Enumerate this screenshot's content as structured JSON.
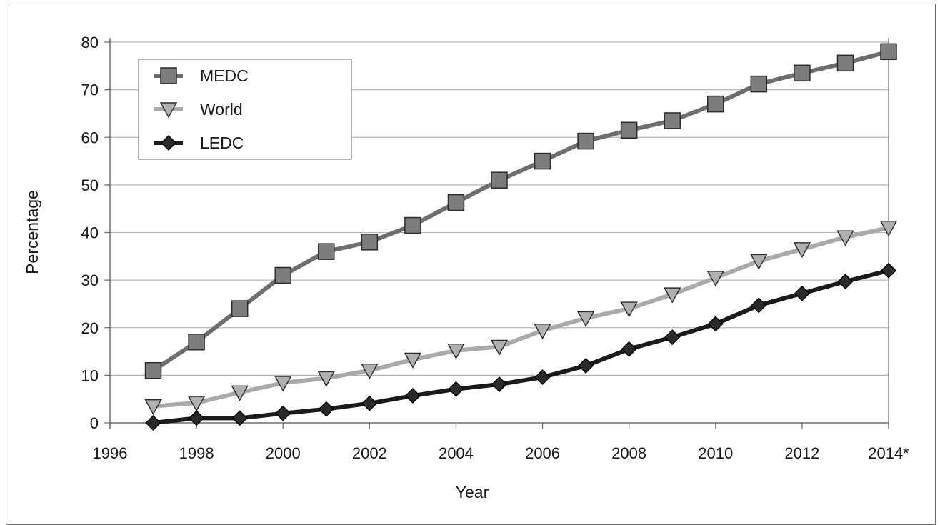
{
  "chart_data": {
    "type": "line",
    "xlabel": "Year",
    "ylabel": "Percentage",
    "ylim": [
      0,
      80
    ],
    "yticks": [
      0,
      10,
      20,
      30,
      40,
      50,
      60,
      70,
      80
    ],
    "xlim": [
      1996,
      2014
    ],
    "xticks": [
      {
        "value": 1996,
        "label": "1996"
      },
      {
        "value": 1998,
        "label": "1998"
      },
      {
        "value": 2000,
        "label": "2000"
      },
      {
        "value": 2002,
        "label": "2002"
      },
      {
        "value": 2004,
        "label": "2004"
      },
      {
        "value": 2006,
        "label": "2006"
      },
      {
        "value": 2008,
        "label": "2008"
      },
      {
        "value": 2010,
        "label": "2010"
      },
      {
        "value": 2012,
        "label": "2012"
      },
      {
        "value": 2014,
        "label": "2014*"
      }
    ],
    "grid": "horizontal",
    "legend_position": "top-left",
    "x": [
      1997,
      1998,
      1999,
      2000,
      2001,
      2002,
      2003,
      2004,
      2005,
      2006,
      2007,
      2008,
      2009,
      2010,
      2011,
      2012,
      2013,
      2014
    ],
    "series": [
      {
        "name": "MEDC",
        "marker": "square",
        "line_color": "#6e6e6e",
        "marker_fill": "#7d7d7d",
        "values": [
          11,
          17,
          24,
          31,
          36,
          38,
          41.5,
          46.3,
          51,
          55,
          59.2,
          61.5,
          63.5,
          67,
          71.2,
          73.5,
          75.6,
          78
        ]
      },
      {
        "name": "World",
        "marker": "triangle-down",
        "line_color": "#aaaaaa",
        "marker_fill": "#b0b0b0",
        "values": [
          3.5,
          4.2,
          6.4,
          8.4,
          9.4,
          11,
          13.3,
          15.2,
          16,
          19.4,
          22,
          24,
          27,
          30.5,
          34,
          36.5,
          39,
          41
        ]
      },
      {
        "name": "LEDC",
        "marker": "diamond",
        "line_color": "#1a1a1a",
        "marker_fill": "#2a2a2a",
        "values": [
          0,
          1,
          1,
          2,
          2.9,
          4.1,
          5.7,
          7.1,
          8.1,
          9.6,
          12,
          15.5,
          18,
          20.8,
          24.7,
          27.2,
          29.7,
          32
        ]
      }
    ]
  }
}
